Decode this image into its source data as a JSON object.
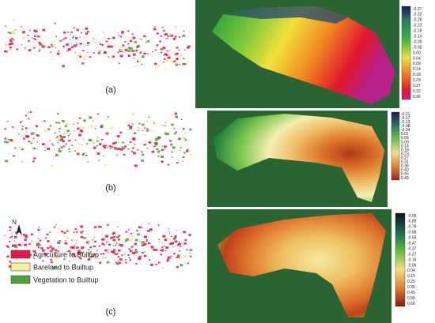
{
  "panels": [
    {
      "label": "(a)",
      "colorbar_ticks": [
        "-0.37",
        "-0.32",
        "-0.28",
        "-0.23",
        "-0.18",
        "-0.14",
        "-0.09",
        "-0.05",
        "0.00",
        "0.04",
        "0.09",
        "0.14",
        "0.18",
        "0.23",
        "0.27",
        "0.32",
        "0.36"
      ]
    },
    {
      "label": "(b)",
      "colorbar_ticks": [
        "-0.21",
        "-0.17",
        "-0.13",
        "-0.08",
        "-0.04",
        "0.01",
        "0.05",
        "0.09",
        "0.14",
        "0.18",
        "0.23",
        "0.27",
        "0.31",
        "0.36",
        "0.40",
        "0.45",
        "0.49"
      ]
    },
    {
      "label": "(c)",
      "colorbar_ticks": [
        "-0.99",
        "-0.89",
        "-0.78",
        "-0.68",
        "-0.58",
        "-0.47",
        "-0.37",
        "-0.27",
        "-0.16",
        "-0.06",
        "0.04",
        "0.15",
        "0.25",
        "0.35",
        "0.45",
        "0.56",
        "0.66"
      ]
    }
  ],
  "north": "N",
  "legend": {
    "items": [
      "Agriculture to Builtup",
      "Bareland to Builtup",
      "Vegetation to Builtup"
    ]
  }
}
